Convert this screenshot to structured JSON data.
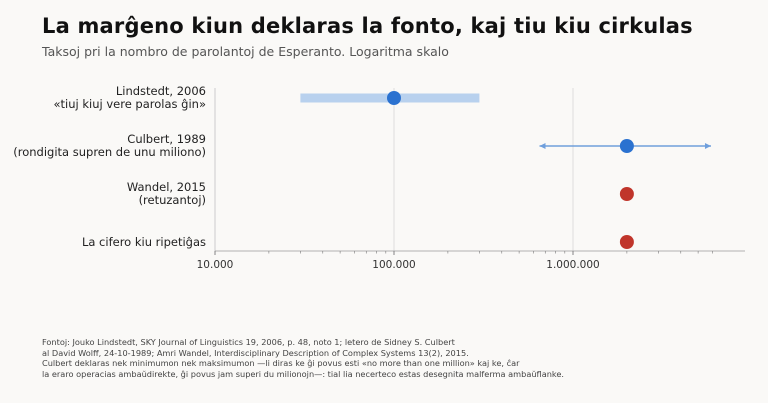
{
  "title": "La marĝeno kiun deklaras la fonto, kaj tiu kiu cirkulas",
  "subtitle": "Taksoj pri la nombro de parolantoj de Esperanto. Logaritma skalo",
  "source_lines": [
    "Fontoj: Jouko Lindstedt, SKY Journal of Linguistics 19, 2006, p. 48, noto 1; letero de Sidney S. Culbert",
    "al David Wolff, 24-10-1989; Amri Wandel, Interdisciplinary Description of Complex Systems 13(2), 2015.",
    "Culbert deklaras nek minimumon nek maksimumon —li diras ke ĝi povus esti «no more than one million» kaj ke, ĉar",
    "la eraro operacias ambaŭdirekte, ĝi povus jam superi du milionojn—: tial lia necerteco estas desegnita malferma ambaŭflanke."
  ],
  "colors": {
    "blue": "#2b72d0",
    "light_blue": "#b8d1ee",
    "arrow_blue": "#6f9fdc",
    "red": "#c0352b",
    "grid": "#dddddd",
    "axis": "#999999"
  },
  "chart_data": {
    "type": "scatter",
    "x_scale": "log",
    "xlim": [
      10000,
      6000000
    ],
    "x_ticks": [
      10000,
      100000,
      1000000
    ],
    "x_tick_labels": [
      "10.000",
      "100.000",
      "1.000.000"
    ],
    "grid": "vertical at major ticks",
    "rows": [
      {
        "label_lines": [
          "Lindstedt, 2006",
          "«tiuj kiuj vere parolas ĝin»"
        ],
        "value": 100000,
        "range": [
          30000,
          300000
        ],
        "range_style": "bar",
        "color": "blue"
      },
      {
        "label_lines": [
          "Culbert, 1989",
          "(rondigita supren de unu miliono)"
        ],
        "value": 2000000,
        "range": [
          650000,
          5900000
        ],
        "range_style": "open-arrows",
        "color": "blue"
      },
      {
        "label_lines": [
          "Wandel, 2015",
          "(retuzantoj)"
        ],
        "value": 2000000,
        "range": null,
        "color": "red"
      },
      {
        "label_lines": [
          "La cifero kiu ripetiĝas"
        ],
        "value": 2000000,
        "range": null,
        "color": "red"
      }
    ]
  }
}
